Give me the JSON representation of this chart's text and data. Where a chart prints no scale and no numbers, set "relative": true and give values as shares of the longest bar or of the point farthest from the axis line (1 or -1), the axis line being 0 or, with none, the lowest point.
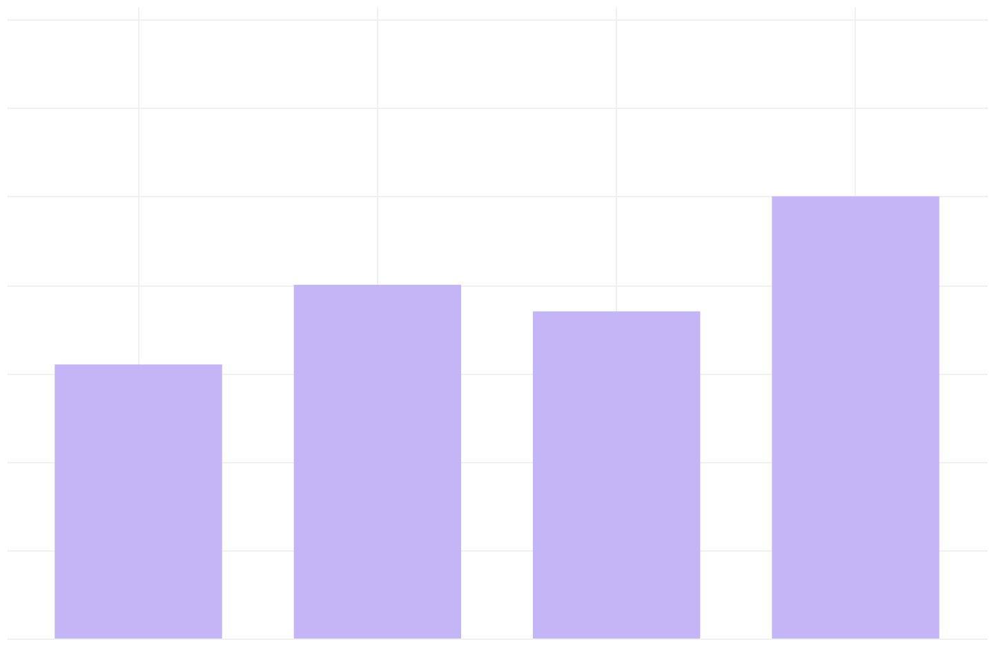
{
  "chart_data": {
    "type": "bar",
    "relative": true,
    "categories": [
      null,
      null,
      null,
      null
    ],
    "values": [
      0.62,
      0.8,
      0.74,
      1.0
    ],
    "color": "#c4b5f7",
    "grid": true
  }
}
